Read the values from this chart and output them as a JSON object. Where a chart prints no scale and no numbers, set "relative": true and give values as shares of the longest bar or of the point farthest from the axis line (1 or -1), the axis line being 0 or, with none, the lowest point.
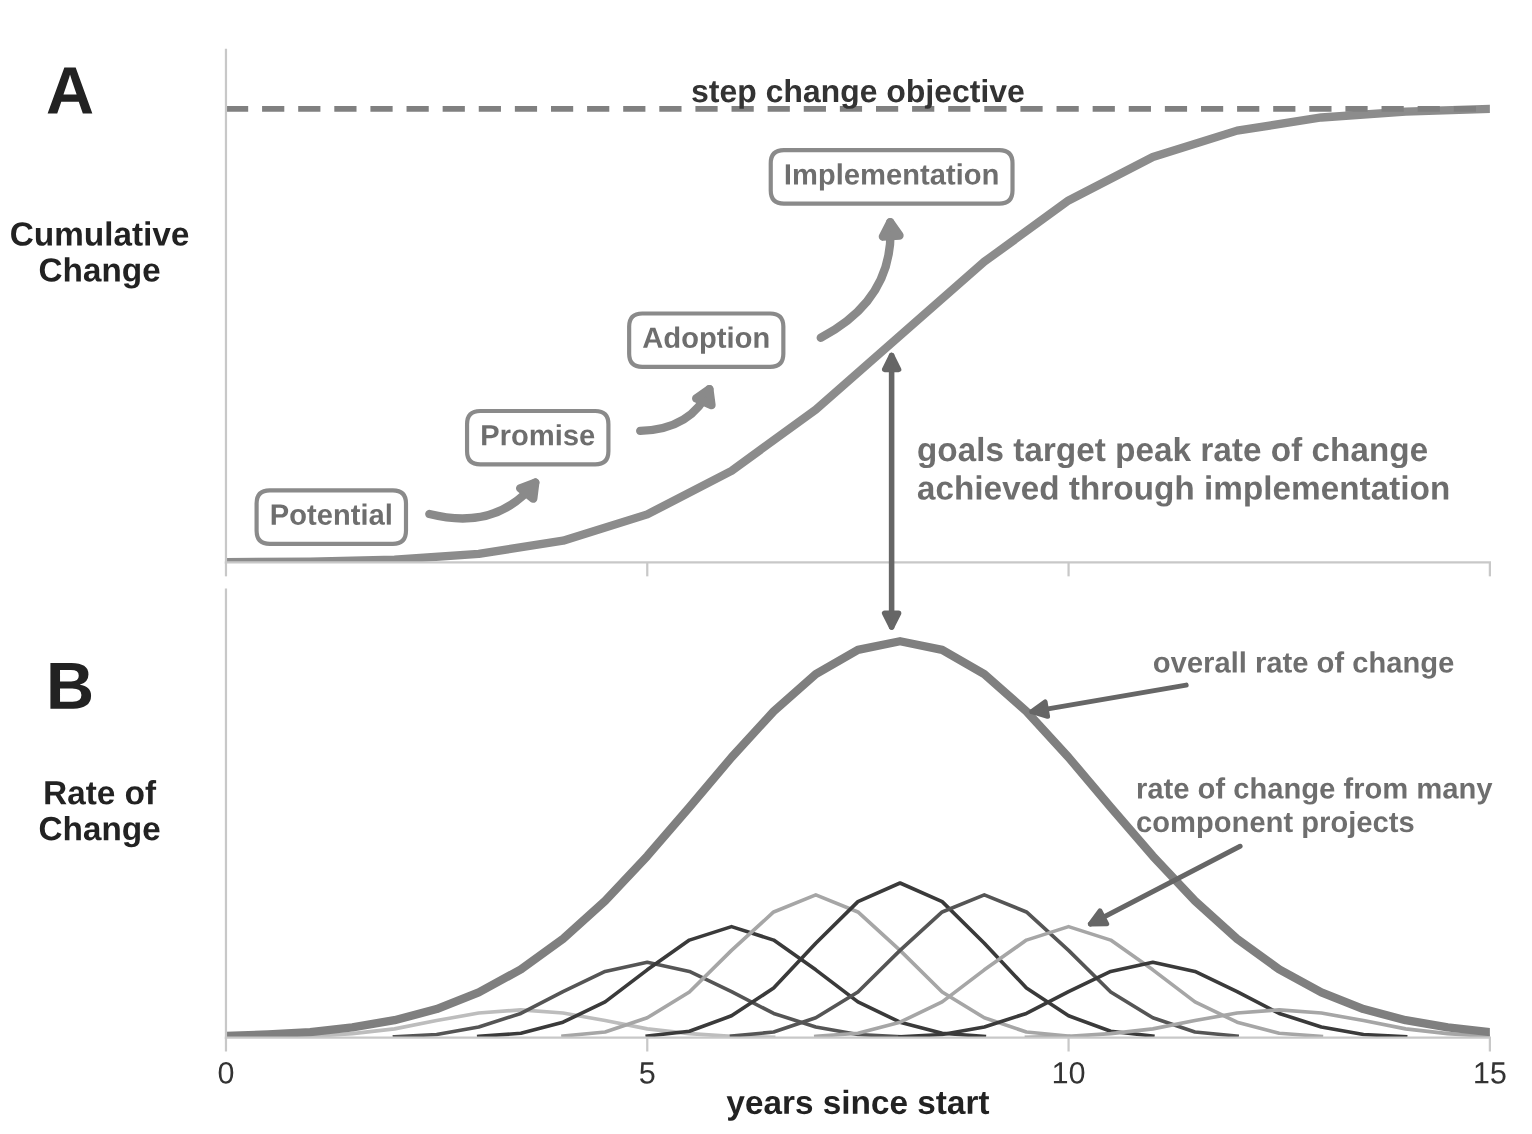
{
  "chart_data": [
    {
      "type": "line",
      "relative": true,
      "ylabel": "Cumulative\nChange",
      "xlim": [
        0,
        15
      ],
      "xticks": [
        0,
        5,
        10,
        15
      ],
      "tick_labels": false,
      "grid": false,
      "legend": false,
      "marker": "none",
      "annotations": [
        "A",
        "Potential",
        "Promise",
        "Adoption",
        "Implementation",
        "goals target peak rate of change\nachieved through implementation"
      ],
      "ref_lines": [
        {
          "axis": "y",
          "value": 1,
          "label": "step change objective",
          "color": "#808080",
          "line_style": "dashed"
        }
      ],
      "series": [
        {
          "color": "#8c8c8c",
          "x": [
            0,
            1,
            2,
            3,
            4,
            5,
            6,
            7,
            8,
            9,
            10,
            11,
            12,
            13,
            14,
            15
          ],
          "values": [
            0.0004,
            0.002,
            0.006,
            0.019,
            0.048,
            0.106,
            0.202,
            0.337,
            0.5,
            0.663,
            0.798,
            0.894,
            0.952,
            0.981,
            0.994,
            1
          ]
        }
      ]
    },
    {
      "type": "line",
      "relative": true,
      "ylabel": "Rate of\nChange",
      "xlabel": "years since start",
      "xlim": [
        0,
        15
      ],
      "xticks": [
        0,
        5,
        10,
        15
      ],
      "tick_labels": "x",
      "grid": false,
      "legend": false,
      "marker": "none",
      "annotations": [
        "B",
        {
          "text": "overall rate of change",
          "x": 9.5,
          "y": 0.82
        },
        {
          "text": "rate of change from many\ncomponent projects",
          "x": 10.2,
          "y": 0.28
        }
      ],
      "series": [
        {
          "color": "#bdbdbd",
          "x": [
            0.5,
            1,
            1.5,
            2,
            2.5,
            3,
            3.5,
            4,
            4.5,
            5,
            5.5,
            6,
            6.5
          ],
          "values": [
            0.001,
            0.003,
            0.01,
            0.022,
            0.043,
            0.062,
            0.07,
            0.062,
            0.043,
            0.022,
            0.01,
            0.003,
            0.001
          ]
        },
        {
          "color": "#555555",
          "x": [
            2,
            2.5,
            3,
            3.5,
            4,
            4.5,
            5,
            5.5,
            6,
            6.5,
            7,
            7.5,
            8
          ],
          "values": [
            0.002,
            0.008,
            0.027,
            0.061,
            0.116,
            0.167,
            0.19,
            0.167,
            0.116,
            0.061,
            0.027,
            0.008,
            0.002
          ]
        },
        {
          "color": "#3a3a3a",
          "x": [
            3,
            3.5,
            4,
            4.5,
            5,
            5.5,
            6,
            6.5,
            7,
            7.5,
            8,
            8.5,
            9
          ],
          "values": [
            0.003,
            0.011,
            0.039,
            0.09,
            0.171,
            0.246,
            0.28,
            0.246,
            0.171,
            0.09,
            0.039,
            0.011,
            0.003
          ]
        },
        {
          "color": "#a6a6a6",
          "x": [
            4,
            4.5,
            5,
            5.5,
            6,
            6.5,
            7,
            7.5,
            8,
            8.5,
            9,
            9.5,
            10
          ],
          "values": [
            0.004,
            0.014,
            0.05,
            0.115,
            0.22,
            0.317,
            0.36,
            0.317,
            0.22,
            0.115,
            0.05,
            0.014,
            0.004
          ]
        },
        {
          "color": "#3a3a3a",
          "x": [
            5,
            5.5,
            6,
            6.5,
            7,
            7.5,
            8,
            8.5,
            9,
            9.5,
            10,
            10.5,
            11
          ],
          "values": [
            0.004,
            0.016,
            0.055,
            0.125,
            0.238,
            0.343,
            0.39,
            0.343,
            0.238,
            0.125,
            0.055,
            0.016,
            0.004
          ]
        },
        {
          "color": "#555555",
          "x": [
            6,
            6.5,
            7,
            7.5,
            8,
            8.5,
            9,
            9.5,
            10,
            10.5,
            11,
            11.5,
            12
          ],
          "values": [
            0.004,
            0.014,
            0.05,
            0.115,
            0.22,
            0.317,
            0.36,
            0.317,
            0.22,
            0.115,
            0.05,
            0.014,
            0.004
          ]
        },
        {
          "color": "#a6a6a6",
          "x": [
            7,
            7.5,
            8,
            8.5,
            9,
            9.5,
            10,
            10.5,
            11,
            11.5,
            12,
            12.5,
            13
          ],
          "values": [
            0.003,
            0.011,
            0.039,
            0.09,
            0.171,
            0.246,
            0.28,
            0.246,
            0.171,
            0.09,
            0.039,
            0.011,
            0.003
          ]
        },
        {
          "color": "#3a3a3a",
          "x": [
            8,
            8.5,
            9,
            9.5,
            10,
            10.5,
            11,
            11.5,
            12,
            12.5,
            13,
            13.5,
            14
          ],
          "values": [
            0.002,
            0.008,
            0.027,
            0.061,
            0.116,
            0.167,
            0.19,
            0.167,
            0.116,
            0.061,
            0.027,
            0.008,
            0.002
          ]
        },
        {
          "color": "#a6a6a6",
          "x": [
            9.5,
            10,
            10.5,
            11,
            11.5,
            12,
            12.5,
            13,
            13.5,
            14,
            14.5,
            15
          ],
          "values": [
            0.001,
            0.003,
            0.01,
            0.022,
            0.043,
            0.062,
            0.07,
            0.062,
            0.043,
            0.022,
            0.01,
            0.003
          ]
        },
        {
          "color": "#7f7f7f",
          "x": [
            0,
            0.5,
            1,
            1.5,
            2,
            2.5,
            3,
            3.5,
            4,
            4.5,
            5,
            5.5,
            6,
            6.5,
            7,
            7.5,
            8,
            8.5,
            9,
            9.5,
            10,
            10.5,
            11,
            11.5,
            12,
            12.5,
            13,
            13.5,
            14,
            14.5,
            15
          ],
          "values": [
            0.004,
            0.008,
            0.014,
            0.026,
            0.044,
            0.072,
            0.114,
            0.172,
            0.249,
            0.345,
            0.458,
            0.581,
            0.707,
            0.823,
            0.917,
            0.978,
            1,
            0.978,
            0.917,
            0.823,
            0.707,
            0.581,
            0.458,
            0.345,
            0.249,
            0.172,
            0.114,
            0.072,
            0.044,
            0.026,
            0.014
          ]
        }
      ]
    }
  ]
}
